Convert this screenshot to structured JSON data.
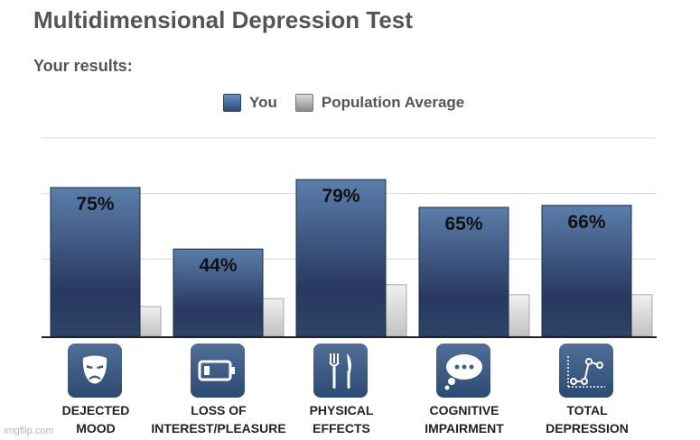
{
  "title": "Multidimensional Depression Test",
  "subtitle": "Your results:",
  "legend": {
    "you": "You",
    "population": "Population Average"
  },
  "colors": {
    "you_top": "#5a7eab",
    "you_bottom": "#26385f",
    "pop_top": "#eeeeee",
    "pop_bottom": "#c4c4c4",
    "grid": "#d8d8d8",
    "axis": "#222222",
    "icon_bg": "#3e5f89"
  },
  "chart_data": {
    "type": "bar",
    "categories": [
      "DEJECTED MOOD",
      "LOSS OF INTEREST/PLEASURE",
      "PHYSICAL EFFECTS",
      "COGNITIVE IMPAIRMENT",
      "TOTAL DEPRESSION"
    ],
    "category_lines": [
      [
        "DEJECTED",
        "MOOD"
      ],
      [
        "LOSS OF",
        "INTEREST/PLEASURE"
      ],
      [
        "PHYSICAL",
        "EFFECTS"
      ],
      [
        "COGNITIVE",
        "IMPAIRMENT"
      ],
      [
        "TOTAL",
        "DEPRESSION"
      ]
    ],
    "series": [
      {
        "name": "You",
        "values": [
          75,
          44,
          79,
          65,
          66
        ],
        "labels": [
          "75%",
          "44%",
          "79%",
          "65%",
          "66%"
        ]
      },
      {
        "name": "Population Average",
        "values": [
          15,
          19,
          26,
          21,
          21
        ]
      }
    ],
    "ylim": [
      0,
      100
    ],
    "grid": true,
    "legend_position": "top-center",
    "icons": [
      "tragedy-mask-icon",
      "low-battery-icon",
      "fork-knife-icon",
      "thought-bubble-icon",
      "line-graph-icon"
    ]
  },
  "watermark": "imgflip.com"
}
